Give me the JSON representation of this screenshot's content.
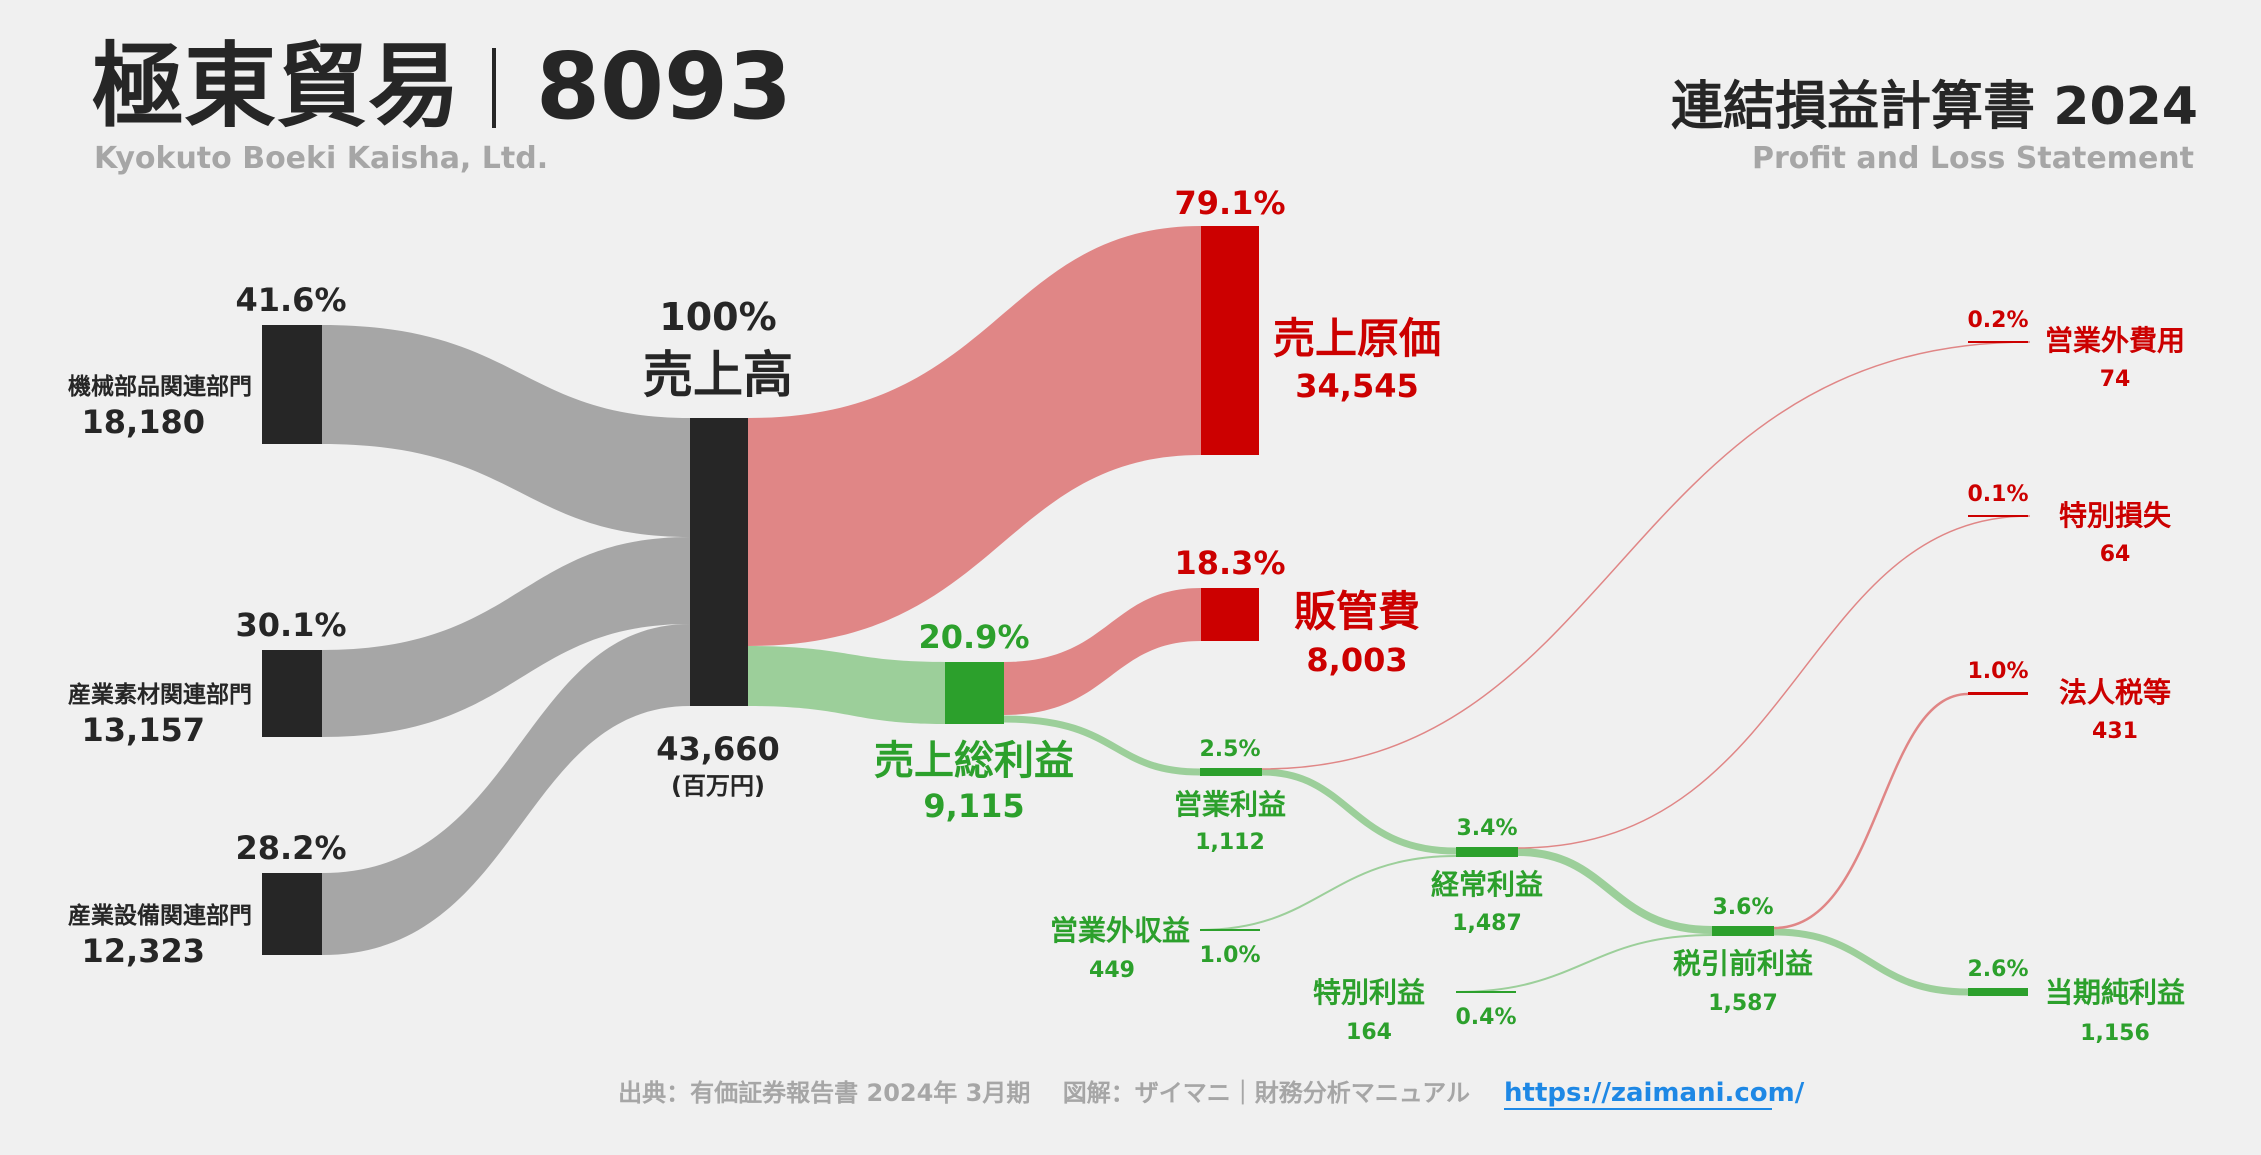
{
  "header": {
    "company_name": "極東貿易",
    "ticker": "8093",
    "company_name_en": "Kyokuto Boeki Kaisha, Ltd.",
    "statement_title": "連結損益計算書 2024",
    "statement_title_en": "Profit and Loss Statement"
  },
  "chart_data": {
    "type": "sankey",
    "unit": "(百万円)",
    "colors": {
      "revenue": "#262626",
      "cost": "#cc0000",
      "profit": "#2ca02c",
      "segment_flow": "#a6a6a6",
      "cost_flow": "#e08686",
      "profit_flow": "#9ccf9a"
    },
    "segments": [
      {
        "name": "機械部品関連部門",
        "value": "18,180",
        "pct": "41.6%"
      },
      {
        "name": "産業素材関連部門",
        "value": "13,157",
        "pct": "30.1%"
      },
      {
        "name": "産業設備関連部門",
        "value": "12,323",
        "pct": "28.2%"
      }
    ],
    "revenue": {
      "name": "売上高",
      "value": "43,660",
      "pct": "100%"
    },
    "cost_of_sales": {
      "name": "売上原価",
      "value": "34,545",
      "pct": "79.1%"
    },
    "sga": {
      "name": "販管費",
      "value": "8,003",
      "pct": "18.3%"
    },
    "gross_profit": {
      "name": "売上総利益",
      "value": "9,115",
      "pct": "20.9%"
    },
    "operating_profit": {
      "name": "営業利益",
      "value": "1,112",
      "pct": "2.5%"
    },
    "non_operating_income": {
      "name": "営業外収益",
      "value": "449",
      "pct": "1.0%"
    },
    "non_operating_expense": {
      "name": "営業外費用",
      "value": "74",
      "pct": "0.2%"
    },
    "ordinary_profit": {
      "name": "経常利益",
      "value": "1,487",
      "pct": "3.4%"
    },
    "extraordinary_income": {
      "name": "特別利益",
      "value": "164",
      "pct": "0.4%"
    },
    "extraordinary_loss": {
      "name": "特別損失",
      "value": "64",
      "pct": "0.1%"
    },
    "pretax_profit": {
      "name": "税引前利益",
      "value": "1,587",
      "pct": "3.6%"
    },
    "income_tax": {
      "name": "法人税等",
      "value": "431",
      "pct": "1.0%"
    },
    "net_profit": {
      "name": "当期純利益",
      "value": "1,156",
      "pct": "2.6%"
    }
  },
  "footer": {
    "source": "出典：有価証券報告書 2024年 3月期　 図解：ザイマニ｜財務分析マニュアル",
    "url": "https://zaimani.com/"
  }
}
